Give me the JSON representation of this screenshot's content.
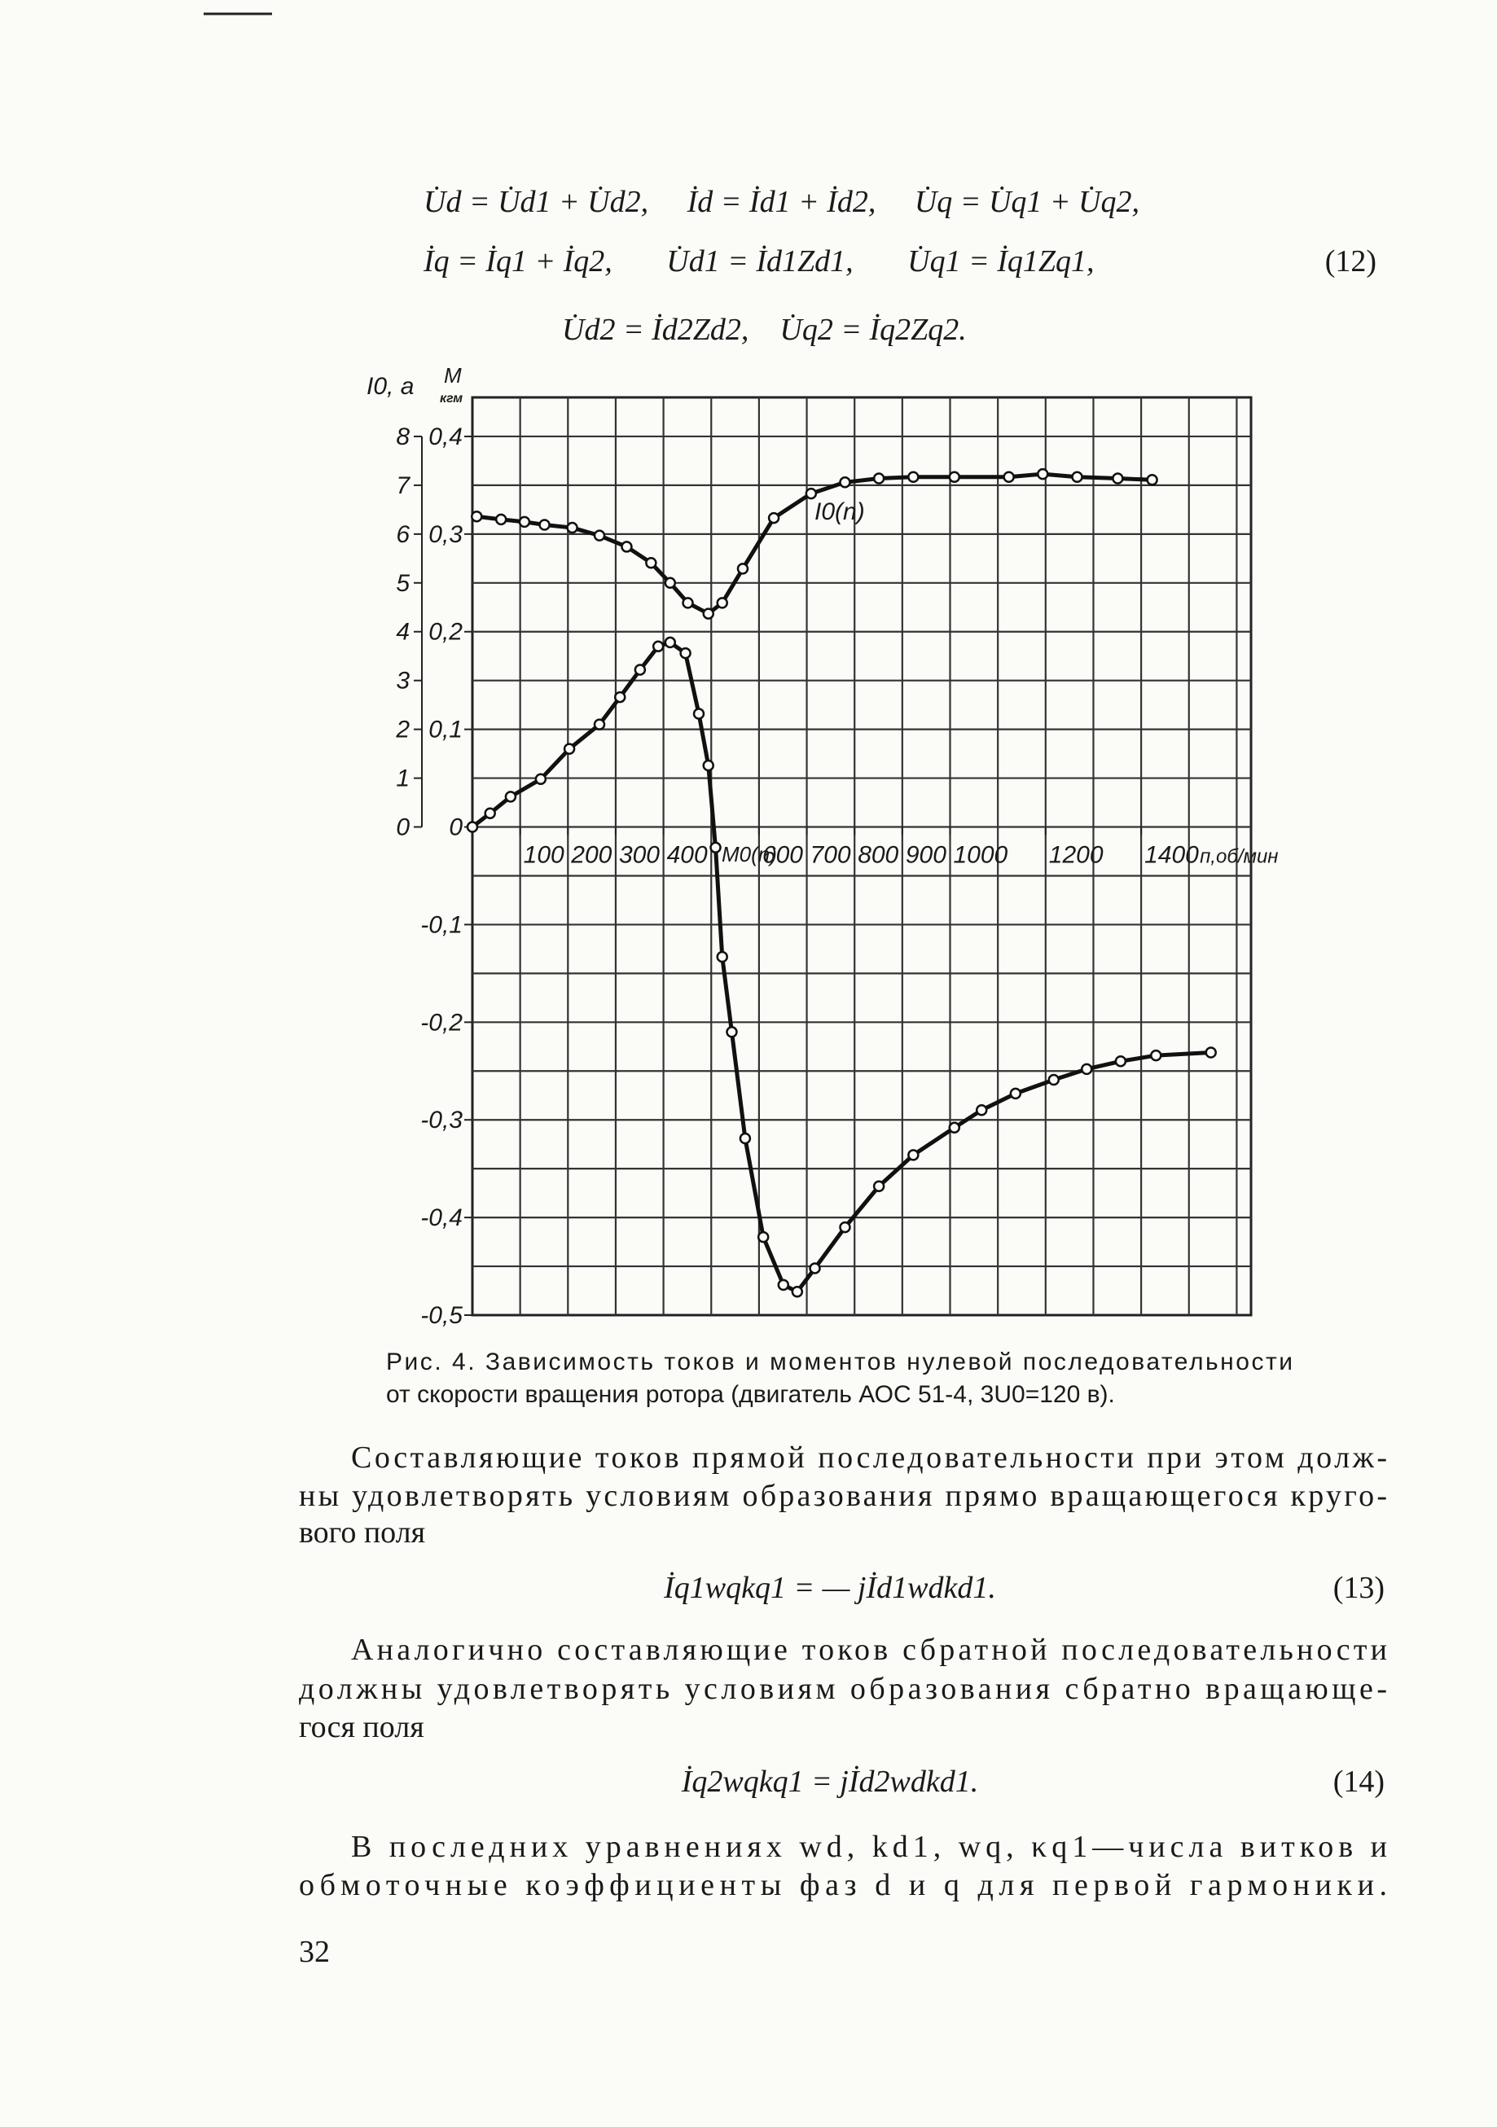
{
  "equation_12": {
    "lines": [
      "U̇d = U̇d1 + U̇d2,     İd = İd1 + İd2,     U̇q = U̇q1 + U̇q2,",
      "İq = İq1 + İq2,       U̇d1 = İd1Zd1,       U̇q1 = İq1Zq1,",
      "U̇d2 = İd2Zd2,    U̇q2 = İq2Zq2."
    ],
    "number": "(12)"
  },
  "chart_data": {
    "type": "line",
    "y_label": "M",
    "y_unit": "кгм",
    "y2_label": "I0, a",
    "x_label": "п,об/мин",
    "xlim": [
      0,
      1630
    ],
    "ylim": [
      -0.5,
      0.44
    ],
    "y2lim": [
      -10,
      8.8
    ],
    "xticks": [
      100,
      200,
      300,
      400,
      600,
      700,
      800,
      900,
      1000,
      1200,
      1400
    ],
    "yticks": [
      {
        "value": 0.4,
        "label": "0,4"
      },
      {
        "value": 0.3,
        "label": "0,3"
      },
      {
        "value": 0.2,
        "label": "0,2"
      },
      {
        "value": 0.1,
        "label": "0,1"
      },
      0,
      {
        "value": -0.1,
        "label": "-0,1"
      },
      {
        "value": -0.2,
        "label": "-0,2"
      },
      {
        "value": -0.3,
        "label": "-0,3"
      },
      {
        "value": -0.4,
        "label": "-0,4"
      },
      {
        "value": -0.5,
        "label": "-0,5"
      }
    ],
    "y2ticks": [
      8,
      7,
      6,
      5,
      4,
      3,
      2,
      1,
      0
    ],
    "grid": true,
    "xgrid": [
      100,
      200,
      300,
      400,
      500,
      600,
      700,
      800,
      900,
      1000,
      1100,
      1200,
      1300,
      1400,
      1500,
      1600
    ],
    "ygrid": [
      0.4,
      0.35,
      0.3,
      0.25,
      0.2,
      0.15,
      0.1,
      0.05,
      0,
      -0.05,
      -0.1,
      -0.15,
      -0.2,
      -0.25,
      -0.3,
      -0.35,
      -0.4,
      -0.45
    ],
    "series": [
      {
        "name": "I0(n)",
        "color": "#111111",
        "axis": "y2",
        "x": [
          9,
          60,
          109,
          151,
          209,
          266,
          323,
          374,
          414,
          451,
          494,
          523,
          566,
          631,
          709,
          780,
          851,
          923,
          1009,
          1123,
          1194,
          1266,
          1351,
          1423
        ],
        "values": [
          6.36,
          6.3,
          6.25,
          6.19,
          6.13,
          5.97,
          5.74,
          5.41,
          5.0,
          4.59,
          4.37,
          4.59,
          5.29,
          6.33,
          6.83,
          7.06,
          7.14,
          7.17,
          7.17,
          7.17,
          7.23,
          7.17,
          7.14,
          7.11
        ]
      },
      {
        "name": "M0(n)",
        "color": "#111111",
        "x": [
          0,
          37,
          80,
          143,
          203,
          266,
          309,
          351,
          389,
          414,
          446,
          474,
          494,
          509,
          523,
          543,
          571,
          609,
          651,
          680,
          717,
          780,
          851,
          923,
          1009,
          1066,
          1137,
          1217,
          1286,
          1357,
          1431,
          1546
        ],
        "values": [
          0,
          0.014,
          0.031,
          0.049,
          0.08,
          0.105,
          0.133,
          0.161,
          0.185,
          0.189,
          0.178,
          0.116,
          0.063,
          -0.021,
          -0.133,
          -0.21,
          -0.319,
          -0.42,
          -0.469,
          -0.476,
          -0.452,
          -0.41,
          -0.368,
          -0.336,
          -0.308,
          -0.29,
          -0.273,
          -0.259,
          -0.248,
          -0.24,
          -0.234,
          -0.231
        ]
      }
    ]
  },
  "caption": {
    "lines": [
      "Рис. 4. Зависимость токов и моментов нулевой последовательности",
      "от скорости вращения ротора (двигатель АОС 51-4, 3U0=120 в)."
    ]
  },
  "paragraph_1": {
    "lines": [
      "Составляющие токов прямой последовательности при этом долж-",
      "ны удовлетворять условиям образования прямо вращающегося круго-",
      "вого поля"
    ]
  },
  "equation_13": {
    "text": "İq1wqkq1 = — jİd1wdkd1.",
    "number": "(13)"
  },
  "paragraph_2": {
    "lines": [
      "Аналогично составляющие токов сбратной последовательности",
      "должны удовлетворять условиям образования сбратно вращающе-",
      "гося поля"
    ]
  },
  "equation_14": {
    "text": "İq2wqkq1 = jİd2wdkd1.",
    "number": "(14)"
  },
  "paragraph_3": {
    "lines": [
      "В последних уравнениях wd, kd1, wq, κq1—числа витков и",
      "обмоточные коэффициенты фаз d и q для первой гармоники."
    ]
  },
  "page_number": "32"
}
